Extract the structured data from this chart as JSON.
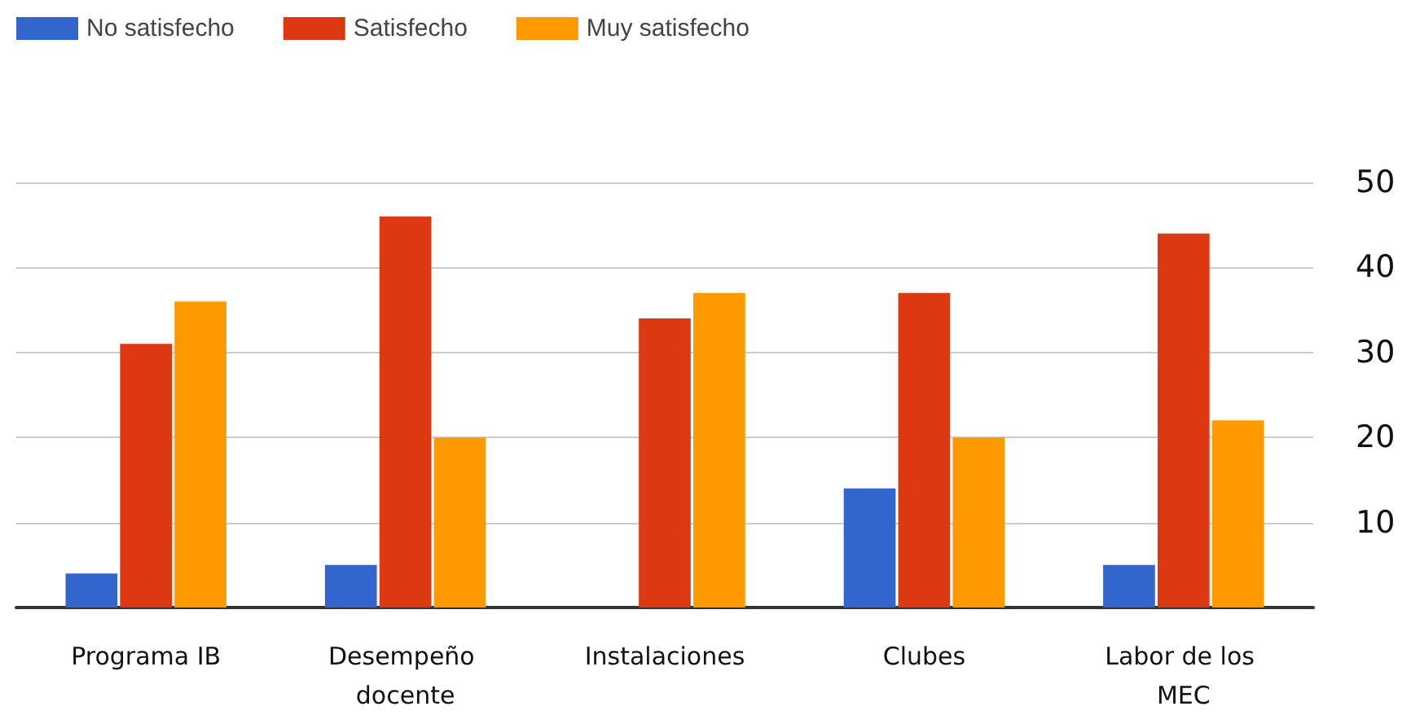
{
  "chart_data": {
    "type": "bar",
    "categories": [
      "Programa IB",
      "Desempeño docente",
      "Instalaciones",
      "Clubes",
      "Labor de los MEC"
    ],
    "series": [
      {
        "name": "No satisfecho",
        "color": "#3366cc",
        "values": [
          4,
          5,
          0,
          14,
          5
        ]
      },
      {
        "name": "Satisfecho",
        "color": "#dc3912",
        "values": [
          31,
          46,
          34,
          37,
          44
        ]
      },
      {
        "name": "Muy satisfecho",
        "color": "#ff9900",
        "values": [
          36,
          20,
          37,
          20,
          22
        ]
      }
    ],
    "ylim": [
      0,
      50
    ],
    "yticks": [
      10,
      20,
      30,
      40,
      50
    ],
    "grid": "y",
    "legend": "top left"
  }
}
